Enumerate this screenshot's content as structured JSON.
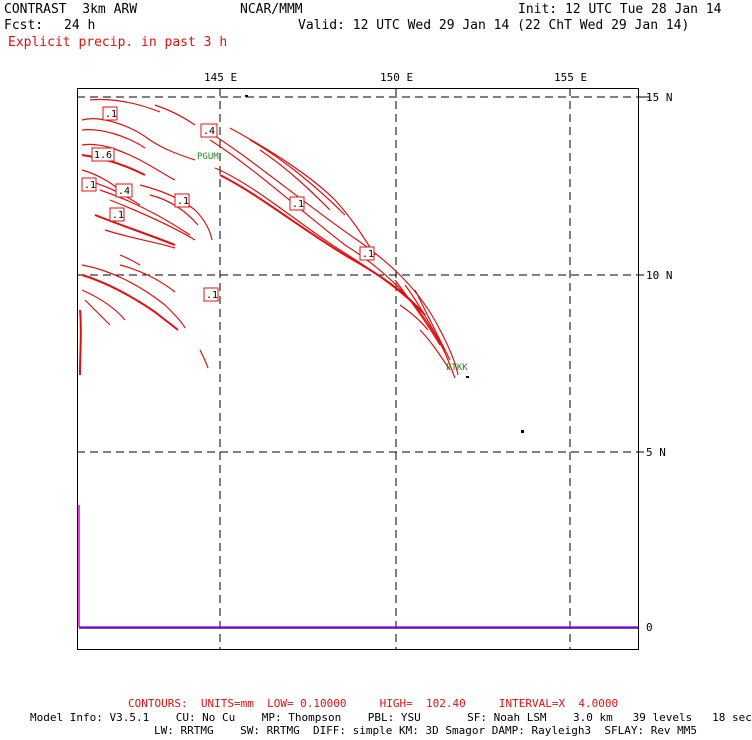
{
  "header": {
    "model_name": "CONTRAST  3km ARW",
    "center": "NCAR/MMM",
    "init": "Init: 12 UTC Tue 28 Jan 14",
    "fcst_label": "Fcst:",
    "fcst_value": "24 h",
    "valid": "Valid: 12 UTC Wed 29 Jan 14 (22 ChT Wed 29 Jan 14)",
    "field": "Explicit precip. in past 3 h"
  },
  "map": {
    "lon_labels": [
      "145 E",
      "150 E",
      "155 E"
    ],
    "lat_labels": [
      "15 N",
      "10 N",
      "5 N"
    ],
    "timeseries_label": "0",
    "contour_labels": [
      ".1",
      "1.6",
      ".1",
      ".4",
      ".1",
      ".1",
      ".4",
      ".1",
      ".1",
      ".1"
    ],
    "stations": [
      "PGUM",
      "PTKK"
    ],
    "colors": {
      "contour": "#e01010",
      "grid": "#000000",
      "station": "#1a8a1a",
      "timeseries": "#e000e0"
    }
  },
  "footer": {
    "contours": "CONTOURS:  UNITS=mm  LOW= 0.10000     HIGH=  102.40     INTERVAL=X  4.0000",
    "model_info_1": "Model Info: V3.5.1    CU: No Cu    MP: Thompson    PBL: YSU       SF: Noah LSM    3.0 km   39 levels   18 sec",
    "model_info_2": "LW: RRTMG    SW: RRTMG  DIFF: simple KM: 3D Smagor DAMP: Rayleigh3  SFLAY: Rev MM5"
  }
}
